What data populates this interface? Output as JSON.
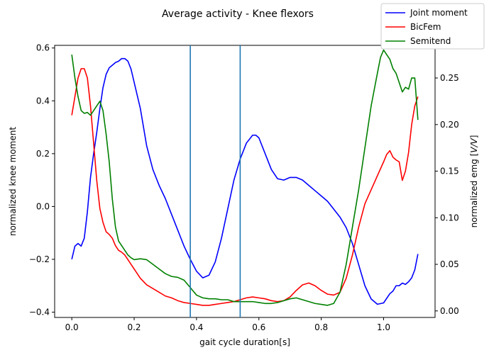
{
  "chart_data": {
    "type": "line",
    "title": "Average activity - Knee flexors",
    "xlabel": "gait cycle duration[s]",
    "ylabel_left": "normalized knee moment",
    "ylabel_right_prefix": "normalized emg [",
    "ylabel_right_unit": "V/V",
    "ylabel_right_suffix": "]",
    "xlim": [
      -0.055,
      1.165
    ],
    "ylim_left": [
      -0.42,
      0.61
    ],
    "ylim_right": [
      -0.007,
      0.285
    ],
    "x_ticks": [
      0.0,
      0.2,
      0.4,
      0.6,
      0.8,
      1.0
    ],
    "x_tick_labels": [
      "0.0",
      "0.2",
      "0.4",
      "0.6",
      "0.8",
      "1.0"
    ],
    "y_left_ticks": [
      -0.4,
      -0.2,
      0.0,
      0.2,
      0.4,
      0.6
    ],
    "y_left_tick_labels": [
      "−0.4",
      "−0.2",
      "0.0",
      "0.2",
      "0.4",
      "0.6"
    ],
    "y_right_ticks": [
      0.0,
      0.05,
      0.1,
      0.15,
      0.2,
      0.25
    ],
    "y_right_tick_labels": [
      "0.00",
      "0.05",
      "0.10",
      "0.15",
      "0.20",
      "0.25"
    ],
    "vlines": [
      0.38,
      0.54
    ],
    "vline_color": "#1f77b4",
    "legend_placement": "top-right",
    "series": [
      {
        "name": "Joint moment",
        "axis": "left",
        "color": "#0000ff",
        "x": [
          0.0,
          0.01,
          0.02,
          0.03,
          0.04,
          0.05,
          0.06,
          0.07,
          0.08,
          0.09,
          0.1,
          0.11,
          0.12,
          0.13,
          0.14,
          0.15,
          0.16,
          0.17,
          0.18,
          0.19,
          0.2,
          0.22,
          0.24,
          0.26,
          0.28,
          0.3,
          0.32,
          0.34,
          0.36,
          0.38,
          0.4,
          0.42,
          0.44,
          0.46,
          0.48,
          0.5,
          0.52,
          0.54,
          0.56,
          0.58,
          0.59,
          0.6,
          0.62,
          0.64,
          0.66,
          0.68,
          0.7,
          0.72,
          0.74,
          0.76,
          0.78,
          0.8,
          0.82,
          0.84,
          0.86,
          0.88,
          0.9,
          0.92,
          0.94,
          0.96,
          0.98,
          1.0,
          1.02,
          1.03,
          1.04,
          1.05,
          1.06,
          1.07,
          1.08,
          1.09,
          1.1,
          1.11
        ],
        "y": [
          -0.2,
          -0.15,
          -0.14,
          -0.15,
          -0.12,
          -0.02,
          0.11,
          0.2,
          0.28,
          0.37,
          0.45,
          0.5,
          0.525,
          0.535,
          0.545,
          0.55,
          0.56,
          0.56,
          0.55,
          0.52,
          0.47,
          0.37,
          0.23,
          0.14,
          0.08,
          0.03,
          -0.03,
          -0.09,
          -0.15,
          -0.2,
          -0.245,
          -0.27,
          -0.26,
          -0.21,
          -0.12,
          -0.01,
          0.1,
          0.18,
          0.24,
          0.27,
          0.27,
          0.26,
          0.2,
          0.14,
          0.105,
          0.1,
          0.11,
          0.11,
          0.1,
          0.08,
          0.06,
          0.04,
          0.02,
          -0.01,
          -0.04,
          -0.08,
          -0.14,
          -0.22,
          -0.3,
          -0.35,
          -0.37,
          -0.365,
          -0.33,
          -0.32,
          -0.3,
          -0.3,
          -0.29,
          -0.295,
          -0.285,
          -0.27,
          -0.24,
          -0.18
        ]
      },
      {
        "name": "BicFem",
        "axis": "right",
        "color": "#ff0000",
        "x": [
          0.0,
          0.01,
          0.02,
          0.03,
          0.04,
          0.05,
          0.06,
          0.07,
          0.08,
          0.09,
          0.1,
          0.11,
          0.12,
          0.13,
          0.14,
          0.15,
          0.16,
          0.17,
          0.18,
          0.19,
          0.2,
          0.22,
          0.24,
          0.26,
          0.28,
          0.3,
          0.32,
          0.34,
          0.36,
          0.38,
          0.4,
          0.42,
          0.44,
          0.46,
          0.48,
          0.5,
          0.52,
          0.54,
          0.56,
          0.58,
          0.6,
          0.62,
          0.64,
          0.66,
          0.68,
          0.7,
          0.72,
          0.74,
          0.76,
          0.78,
          0.8,
          0.82,
          0.84,
          0.86,
          0.88,
          0.9,
          0.92,
          0.94,
          0.96,
          0.98,
          1.0,
          1.01,
          1.02,
          1.03,
          1.04,
          1.05,
          1.06,
          1.07,
          1.08,
          1.09,
          1.1,
          1.11
        ],
        "y": [
          0.21,
          0.23,
          0.25,
          0.26,
          0.26,
          0.25,
          0.22,
          0.18,
          0.14,
          0.11,
          0.095,
          0.085,
          0.082,
          0.078,
          0.07,
          0.065,
          0.063,
          0.06,
          0.055,
          0.05,
          0.045,
          0.035,
          0.028,
          0.024,
          0.02,
          0.016,
          0.014,
          0.011,
          0.009,
          0.008,
          0.007,
          0.006,
          0.006,
          0.007,
          0.008,
          0.009,
          0.01,
          0.012,
          0.014,
          0.015,
          0.014,
          0.013,
          0.011,
          0.01,
          0.011,
          0.015,
          0.022,
          0.028,
          0.03,
          0.027,
          0.022,
          0.018,
          0.017,
          0.02,
          0.035,
          0.06,
          0.09,
          0.115,
          0.13,
          0.145,
          0.16,
          0.168,
          0.172,
          0.165,
          0.162,
          0.16,
          0.14,
          0.15,
          0.17,
          0.2,
          0.22,
          0.23
        ]
      },
      {
        "name": "Semitend",
        "axis": "right",
        "color": "#008000",
        "x": [
          0.0,
          0.01,
          0.02,
          0.03,
          0.04,
          0.05,
          0.06,
          0.07,
          0.08,
          0.09,
          0.1,
          0.11,
          0.12,
          0.13,
          0.14,
          0.15,
          0.16,
          0.17,
          0.18,
          0.19,
          0.2,
          0.22,
          0.24,
          0.26,
          0.28,
          0.3,
          0.32,
          0.34,
          0.36,
          0.38,
          0.4,
          0.42,
          0.44,
          0.46,
          0.48,
          0.5,
          0.52,
          0.54,
          0.56,
          0.58,
          0.6,
          0.62,
          0.64,
          0.66,
          0.68,
          0.7,
          0.72,
          0.74,
          0.76,
          0.78,
          0.8,
          0.82,
          0.84,
          0.86,
          0.88,
          0.9,
          0.92,
          0.94,
          0.96,
          0.98,
          0.99,
          1.0,
          1.01,
          1.02,
          1.03,
          1.04,
          1.05,
          1.06,
          1.07,
          1.08,
          1.09,
          1.1,
          1.11
        ],
        "y": [
          0.275,
          0.25,
          0.23,
          0.215,
          0.212,
          0.213,
          0.21,
          0.215,
          0.22,
          0.225,
          0.215,
          0.19,
          0.16,
          0.12,
          0.09,
          0.075,
          0.07,
          0.065,
          0.06,
          0.057,
          0.055,
          0.056,
          0.055,
          0.05,
          0.045,
          0.04,
          0.037,
          0.036,
          0.033,
          0.025,
          0.017,
          0.014,
          0.013,
          0.013,
          0.012,
          0.012,
          0.01,
          0.01,
          0.01,
          0.01,
          0.009,
          0.008,
          0.008,
          0.009,
          0.011,
          0.013,
          0.014,
          0.012,
          0.01,
          0.008,
          0.007,
          0.006,
          0.008,
          0.02,
          0.05,
          0.09,
          0.13,
          0.175,
          0.22,
          0.255,
          0.272,
          0.28,
          0.275,
          0.27,
          0.26,
          0.255,
          0.245,
          0.235,
          0.24,
          0.238,
          0.25,
          0.25,
          0.205
        ]
      }
    ]
  }
}
